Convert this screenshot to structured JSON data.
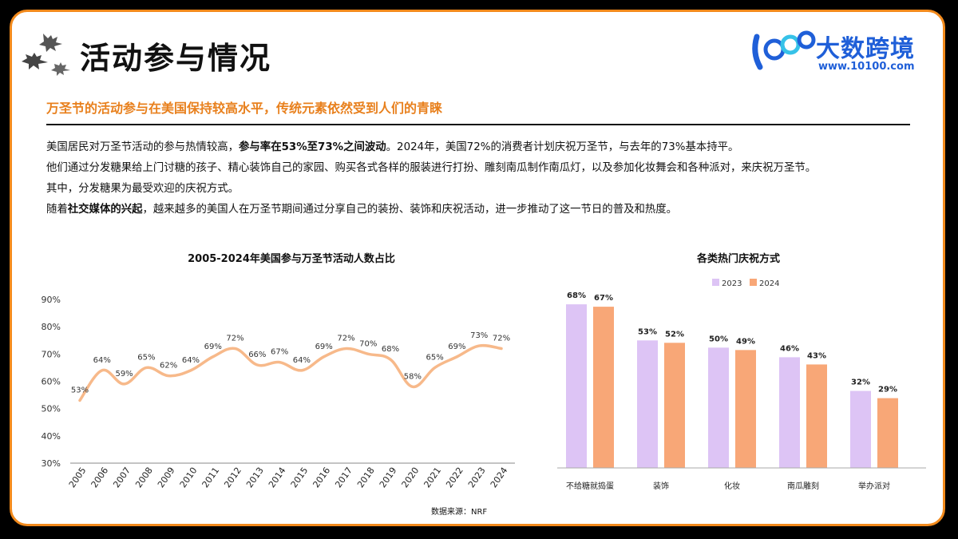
{
  "header": {
    "title": "活动参与情况",
    "logo_name": "大数跨境",
    "logo_url": "www.10100.com",
    "logo_mark": "100"
  },
  "subtitle": "万圣节的活动参与在美国保持较高水平，传统元素依然受到人们的青睐",
  "paragraphs": {
    "p1_a": "美国居民对万圣节活动的参与热情较高，",
    "p1_b": "参与率在53%至73%之间波动",
    "p1_c": "。2024年，美国72%的消费者计划庆祝万圣节，与去年的73%基本持平。",
    "p2": "他们通过分发糖果给上门讨糖的孩子、精心装饰自己的家园、购买各式各样的服装进行打扮、雕刻南瓜制作南瓜灯，以及参加化妆舞会和各种派对，来庆祝万圣节。",
    "p3": "其中，分发糖果为最受欢迎的庆祝方式。",
    "p4_a": "随着",
    "p4_b": "社交媒体的兴起",
    "p4_c": "，越来越多的美国人在万圣节期间通过分享自己的装扮、装饰和庆祝活动，进一步推动了这一节日的普及和热度。"
  },
  "source": "数据来源：NRF",
  "colors": {
    "accent": "#f28a1c",
    "line": "#f7b98a",
    "bar2023": "#ddc4f5",
    "bar2024": "#f8a777",
    "brand": "#1f5fd8"
  },
  "chart_data": [
    {
      "type": "line",
      "title": "2005-2024年美国参与万圣节活动人数占比",
      "x": [
        "2005",
        "2006",
        "2007",
        "2008",
        "2009",
        "2010",
        "2011",
        "2012",
        "2013",
        "2014",
        "2015",
        "2016",
        "2017",
        "2018",
        "2019",
        "2020",
        "2021",
        "2022",
        "2023",
        "2024"
      ],
      "series": [
        {
          "values": [
            53,
            64,
            59,
            65,
            62,
            64,
            69,
            72,
            66,
            67,
            64,
            69,
            72,
            70,
            68,
            58,
            65,
            69,
            73,
            72
          ]
        }
      ],
      "data_labels": [
        "53%",
        "64%",
        "59%",
        "65%",
        "62%",
        "64%",
        "69%",
        "72%",
        "66%",
        "67%",
        "64%",
        "69%",
        "72%",
        "70%",
        "68%",
        "58%",
        "65%",
        "69%",
        "73%",
        "72%"
      ],
      "yticks": [
        "30%",
        "40%",
        "50%",
        "60%",
        "70%",
        "80%",
        "90%"
      ],
      "ylim": [
        30,
        90
      ],
      "grid": false
    },
    {
      "type": "bar",
      "title": "各类热门庆祝方式",
      "categories": [
        "不给糖就捣蛋",
        "装饰",
        "化妆",
        "南瓜雕刻",
        "举办派对"
      ],
      "series": [
        {
          "name": "2023",
          "values": [
            68,
            53,
            50,
            46,
            32
          ],
          "labels": [
            "68%",
            "53%",
            "50%",
            "46%",
            "32%"
          ]
        },
        {
          "name": "2024",
          "values": [
            67,
            52,
            49,
            43,
            29
          ],
          "labels": [
            "67%",
            "52%",
            "49%",
            "43%",
            "29%"
          ]
        }
      ],
      "ylim": [
        0,
        75
      ],
      "legend": "top-center",
      "grid": false
    }
  ]
}
